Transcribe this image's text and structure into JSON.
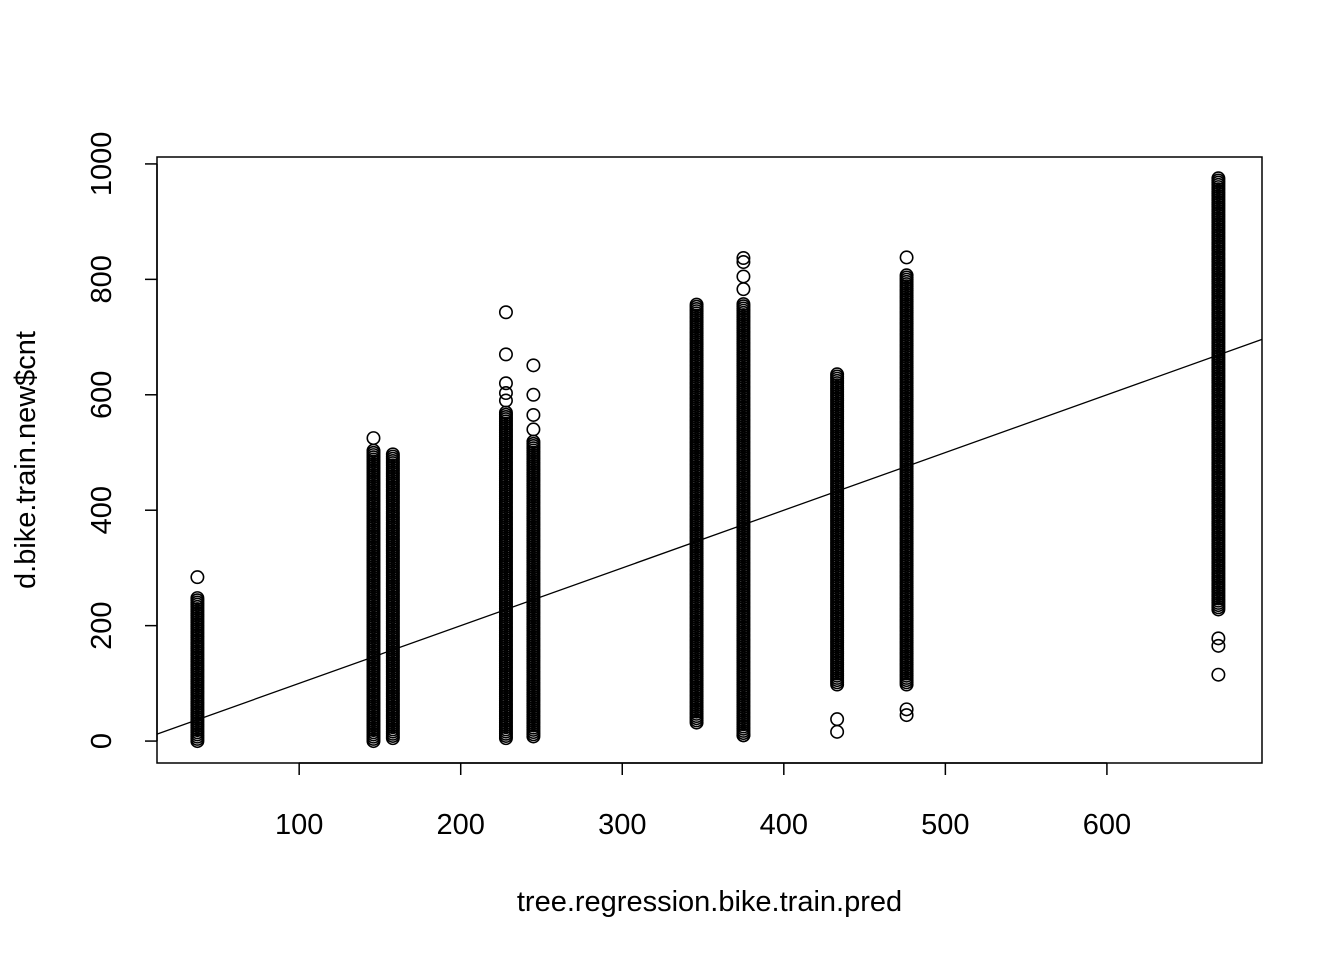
{
  "chart_data": {
    "type": "scatter",
    "title": "",
    "xlabel": "tree.regression.bike.train.pred",
    "ylabel": "d.bike.train.new$cnt",
    "xlim": [
      12,
      696
    ],
    "ylim": [
      -38,
      1012
    ],
    "x_ticks": [
      100,
      200,
      300,
      400,
      500,
      600
    ],
    "x_tick_labels": [
      "100",
      "200",
      "300",
      "400",
      "500",
      "600"
    ],
    "y_ticks": [
      0,
      200,
      400,
      600,
      800,
      1000
    ],
    "y_tick_labels": [
      "0",
      "200",
      "400",
      "600",
      "800",
      "1000"
    ],
    "grid": false,
    "reference_line": {
      "intercept": 0,
      "slope": 1
    },
    "clusters": [
      {
        "x": 37,
        "y_min": 0,
        "y_max": 248,
        "outliers": [
          284
        ]
      },
      {
        "x": 146,
        "y_min": 0,
        "y_max": 505,
        "outliers": [
          525
        ]
      },
      {
        "x": 158,
        "y_min": 5,
        "y_max": 500,
        "outliers": []
      },
      {
        "x": 228,
        "y_min": 5,
        "y_max": 570,
        "outliers": [
          590,
          603,
          620,
          670,
          743
        ]
      },
      {
        "x": 245,
        "y_min": 8,
        "y_max": 520,
        "outliers": [
          540,
          565,
          600,
          651
        ]
      },
      {
        "x": 346,
        "y_min": 32,
        "y_max": 760,
        "outliers": []
      },
      {
        "x": 375,
        "y_min": 10,
        "y_max": 760,
        "outliers": [
          10,
          783,
          805,
          830,
          837
        ]
      },
      {
        "x": 433,
        "y_min": 98,
        "y_max": 638,
        "outliers": [
          16,
          38
        ]
      },
      {
        "x": 476,
        "y_min": 98,
        "y_max": 810,
        "outliers": [
          45,
          55,
          838
        ]
      },
      {
        "x": 669,
        "y_min": 228,
        "y_max": 978,
        "outliers": [
          115,
          165,
          178
        ]
      }
    ]
  }
}
